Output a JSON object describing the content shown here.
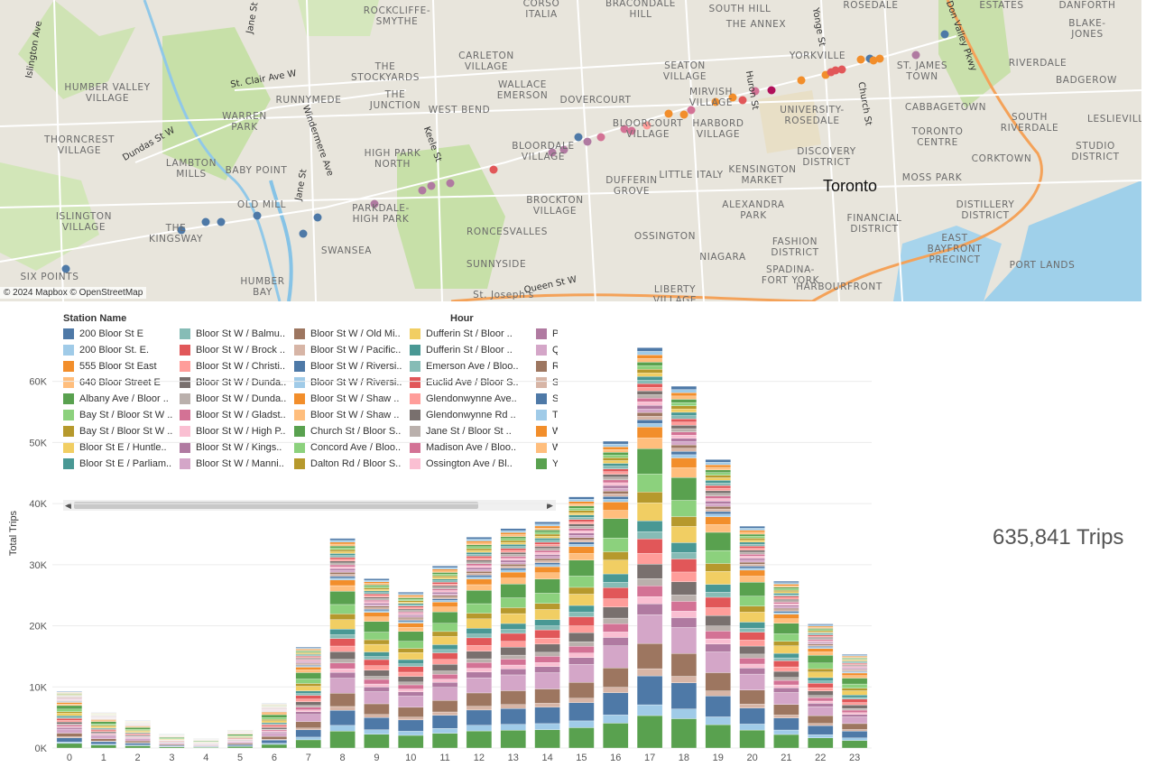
{
  "map": {
    "attribution": "© 2024 Mapbox © OpenStreetMap",
    "city_label": "Toronto",
    "neighborhoods": [
      "ROCKCLIFFE-\nSMYTHE",
      "CORSO\nITALIA",
      "BRACONDALE\nHILL",
      "SOUTH HILL",
      "ROSEDALE",
      "ESTATES",
      "DANFORTH",
      "BLAKE-\nJONES",
      "THE ANNEX",
      "YORKVILLE",
      "ST. JAMES\nTOWN",
      "RIVERDALE",
      "BADGEROW",
      "HUMBER VALLEY\nVILLAGE",
      "CARLETON\nVILLAGE",
      "THE\nSTOCKYARDS",
      "SEATON\nVILLAGE",
      "WALLACE\nEMERSON",
      "RUNNYMEDE",
      "THE\nJUNCTION",
      "DOVERCOURT",
      "MIRVISH\nVILLAGE",
      "UNIVERSITY-\nROSEDALE",
      "CABBAGETOWN",
      "SOUTH\nRIVERDALE",
      "LESLIEVILLE",
      "WARREN\nPARK",
      "WEST BEND",
      "BLOORCOURT\nVILLAGE",
      "HARBORD\nVILLAGE",
      "TORONTO\nCENTRE",
      "STUDIO\nDISTRICT",
      "THORNCREST\nVILLAGE",
      "LAMBTON\nMILLS",
      "BABY POINT",
      "HIGH PARK\nNORTH",
      "BLOORDALE\nVILLAGE",
      "LITTLE ITALY",
      "KENSINGTON\nMARKET",
      "DISCOVERY\nDISTRICT",
      "CORKTOWN",
      "OLD MILL",
      "DUFFERIN\nGROVE",
      "MOSS PARK",
      "ISLINGTON\nVILLAGE",
      "THE\nKINGSWAY",
      "PARKDALE-\nHIGH PARK",
      "BROCKTON\nVILLAGE",
      "ALEXANDRA\nPARK",
      "FINANCIAL\nDISTRICT",
      "DISTILLERY\nDISTRICT",
      "SWANSEA",
      "RONCESVALLES",
      "OSSINGTON",
      "FASHION\nDISTRICT",
      "EAST\nBAYFRONT\nPRECINCT",
      "SIX POINTS",
      "HUMBER\nBAY",
      "SUNNYSIDE",
      "NIAGARA",
      "SPADINA-\nFORT YORK",
      "PORT LANDS",
      "LIBERTY\nVILLAGE",
      "HARBOURFRONT",
      "St. Joseph's"
    ],
    "streets": [
      "Islington Ave",
      "Jane St",
      "St. Clair Ave W",
      "Dundas St W",
      "Windermere Ave",
      "Jane St",
      "Keele St",
      "Huron St",
      "Yonge St",
      "Church St",
      "Don Valley Pkwy",
      "Queen St W"
    ]
  },
  "legend": {
    "title": "Station Name",
    "hour_header": "Hour",
    "items": [
      {
        "label": "200 Bloor St E",
        "color": "#4e79a7"
      },
      {
        "label": "200 Bloor St. E.",
        "color": "#a0cbe8"
      },
      {
        "label": "555 Bloor St East",
        "color": "#f28e2b"
      },
      {
        "label": "640 Bloor Street E",
        "color": "#ffbe7d"
      },
      {
        "label": "Albany Ave / Bloor ..",
        "color": "#59a14f"
      },
      {
        "label": "Bay St / Bloor St W ..",
        "color": "#8cd17d"
      },
      {
        "label": "Bay St / Bloor St W ..",
        "color": "#b6992d"
      },
      {
        "label": "Bloor St E / Huntle..",
        "color": "#f1ce63"
      },
      {
        "label": "Bloor St E / Parliam..",
        "color": "#499894"
      },
      {
        "label": "Bloor St W / Balmu..",
        "color": "#86bcb6"
      },
      {
        "label": "Bloor St W / Brock ..",
        "color": "#e15759"
      },
      {
        "label": "Bloor St W / Christi..",
        "color": "#ff9d9a"
      },
      {
        "label": "Bloor St W / Dunda..",
        "color": "#79706e"
      },
      {
        "label": "Bloor St W / Dunda..",
        "color": "#bab0ac"
      },
      {
        "label": "Bloor St W / Gladst..",
        "color": "#d37295"
      },
      {
        "label": "Bloor St W / High P..",
        "color": "#fabfd2"
      },
      {
        "label": "Bloor St W / Kings..",
        "color": "#b07aa1"
      },
      {
        "label": "Bloor St W / Manni..",
        "color": "#d4a6c8"
      },
      {
        "label": "Bloor St W / Old Mi..",
        "color": "#9d7660"
      },
      {
        "label": "Bloor St W / Pacific..",
        "color": "#d7b5a6"
      },
      {
        "label": "Bloor St W / Riversi..",
        "color": "#4e79a7"
      },
      {
        "label": "Bloor St W / Riversi..",
        "color": "#a0cbe8"
      },
      {
        "label": "Bloor St W / Shaw ..",
        "color": "#f28e2b"
      },
      {
        "label": "Bloor St W / Shaw ..",
        "color": "#ffbe7d"
      },
      {
        "label": "Church St / Bloor S..",
        "color": "#59a14f"
      },
      {
        "label": "Concord Ave / Bloo..",
        "color": "#8cd17d"
      },
      {
        "label": "Dalton Rd / Bloor S..",
        "color": "#b6992d"
      },
      {
        "label": "Dufferin St / Bloor ..",
        "color": "#f1ce63"
      },
      {
        "label": "Dufferin St / Bloor ..",
        "color": "#499894"
      },
      {
        "label": "Emerson Ave / Bloo..",
        "color": "#86bcb6"
      },
      {
        "label": "Euclid Ave / Bloor S..",
        "color": "#e15759"
      },
      {
        "label": "Glendonwynne Ave..",
        "color": "#ff9d9a"
      },
      {
        "label": "Glendonwynne Rd ..",
        "color": "#79706e"
      },
      {
        "label": "Jane St / Bloor St ..",
        "color": "#bab0ac"
      },
      {
        "label": "Madison Ave / Bloo..",
        "color": "#d37295"
      },
      {
        "label": "Ossington Ave / Bl..",
        "color": "#fabfd2"
      },
      {
        "label": "Parkdale Dr / Bloor ..",
        "color": "#b07aa1"
      },
      {
        "label": "Queen's Park / Blo..",
        "color": "#d4a6c8"
      },
      {
        "label": "Robert St / Bloor S..",
        "color": "#9d7660"
      },
      {
        "label": "Salem Ave / Bloor S..",
        "color": "#d7b5a6"
      },
      {
        "label": "St. G",
        "color": "#4e79a7"
      },
      {
        "label": "Ted",
        "color": "#a0cbe8"
      },
      {
        "label": "Wer",
        "color": "#f28e2b"
      },
      {
        "label": "Will",
        "color": "#ffbe7d"
      },
      {
        "label": "Yon",
        "color": "#59a14f"
      }
    ]
  },
  "summary": {
    "total_trips_label": "635,841 Trips"
  },
  "chart_data": {
    "type": "bar",
    "stacked": true,
    "x": [
      0,
      1,
      2,
      3,
      4,
      5,
      6,
      7,
      8,
      9,
      10,
      11,
      12,
      13,
      14,
      15,
      16,
      17,
      18,
      19,
      20,
      21,
      22,
      23
    ],
    "values": [
      9300,
      5800,
      4500,
      2300,
      1600,
      3000,
      7300,
      16500,
      34300,
      27700,
      25500,
      29800,
      34500,
      35900,
      37000,
      41100,
      50200,
      65500,
      59200,
      47200,
      36300,
      27300,
      20300,
      15300
    ],
    "xlabel": "Hour",
    "ylabel": "Total Trips",
    "ylim": [
      0,
      66000
    ],
    "yticks": [
      0,
      10000,
      20000,
      30000,
      40000,
      50000,
      60000
    ],
    "ytick_labels": [
      "0K",
      "10K",
      "20K",
      "30K",
      "40K",
      "50K",
      "60K"
    ],
    "grid": true,
    "legend_position": "top-left",
    "segment_colors": [
      "#59a14f",
      "#a0cbe8",
      "#4e79a7",
      "#d7b5a6",
      "#9d7660",
      "#d4a6c8",
      "#b07aa1",
      "#fabfd2",
      "#d37295",
      "#bab0ac",
      "#79706e",
      "#ff9d9a",
      "#e15759",
      "#86bcb6",
      "#499894",
      "#f1ce63",
      "#b6992d",
      "#8cd17d",
      "#59a14f",
      "#ffbe7d",
      "#f28e2b",
      "#a0cbe8",
      "#4e79a7",
      "#d7b5a6",
      "#9d7660",
      "#d4a6c8",
      "#b07aa1",
      "#fabfd2",
      "#d37295",
      "#bab0ac",
      "#79706e",
      "#ff9d9a",
      "#e15759",
      "#86bcb6",
      "#499894",
      "#f1ce63",
      "#b6992d",
      "#8cd17d",
      "#59a14f",
      "#ffbe7d",
      "#f28e2b",
      "#a0cbe8",
      "#4e79a7"
    ],
    "segment_weights": [
      9,
      3,
      8,
      2,
      7,
      8,
      3,
      2,
      3,
      2,
      4,
      3,
      4,
      2,
      3,
      5,
      3,
      5,
      7,
      3,
      3,
      1,
      1,
      1,
      1,
      1,
      1,
      1,
      1,
      1,
      1,
      1,
      1,
      1,
      1,
      1,
      1,
      1,
      1,
      1,
      1,
      1,
      1
    ]
  }
}
